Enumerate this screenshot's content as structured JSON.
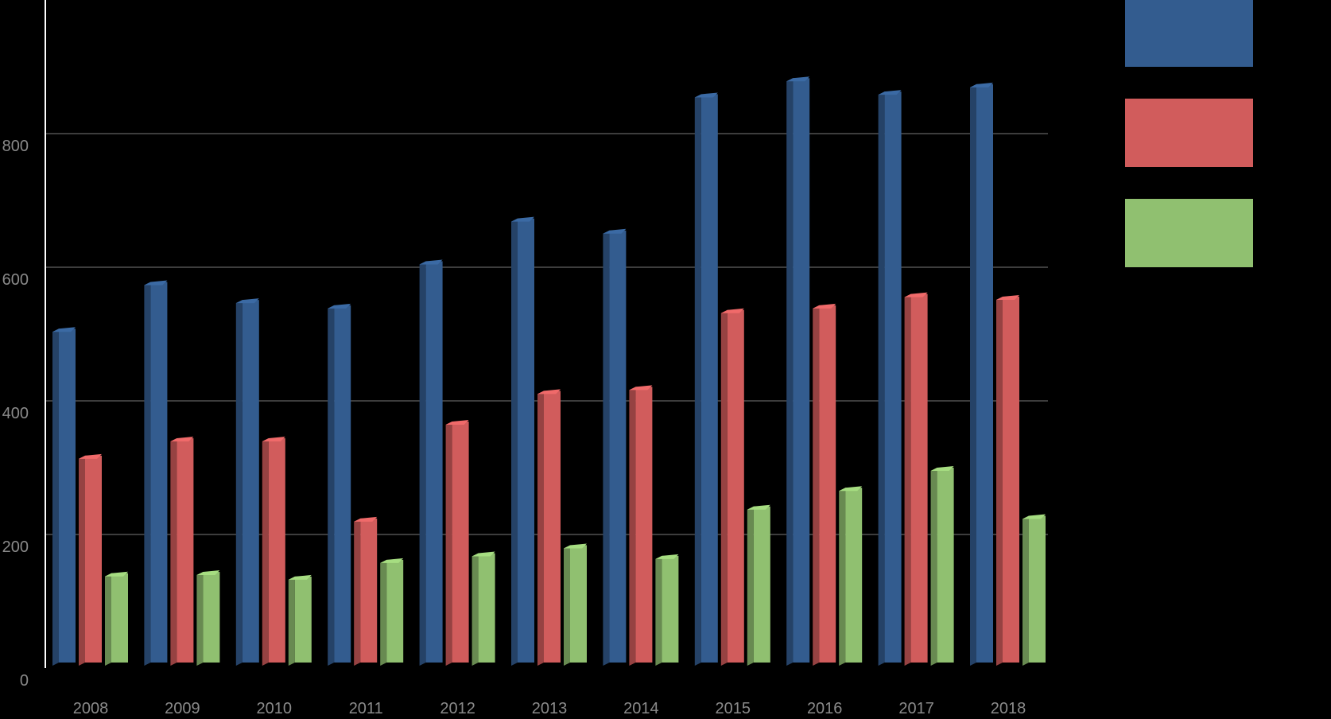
{
  "chart_data": {
    "type": "bar",
    "style": "3d-clustered-column",
    "categories": [
      "2008",
      "2009",
      "2010",
      "2011",
      "2012",
      "2013",
      "2014",
      "2015",
      "2016",
      "2017",
      "2018"
    ],
    "series": [
      {
        "color": "#335c8f",
        "values": [
          508,
          578,
          551,
          543,
          609,
          673,
          655,
          859,
          883,
          863,
          874
        ]
      },
      {
        "color": "#d15c5c",
        "values": [
          318,
          344,
          344,
          224,
          369,
          415,
          421,
          536,
          543,
          560,
          556
        ]
      },
      {
        "color": "#90c070",
        "values": [
          142,
          144,
          137,
          162,
          172,
          184,
          168,
          242,
          270,
          300,
          228
        ]
      }
    ],
    "y_ticks": [
      "0",
      "200",
      "400",
      "600",
      "800"
    ],
    "ylim": [
      0,
      1000
    ],
    "grid": true,
    "legend": "top-right",
    "background": "#000000"
  }
}
